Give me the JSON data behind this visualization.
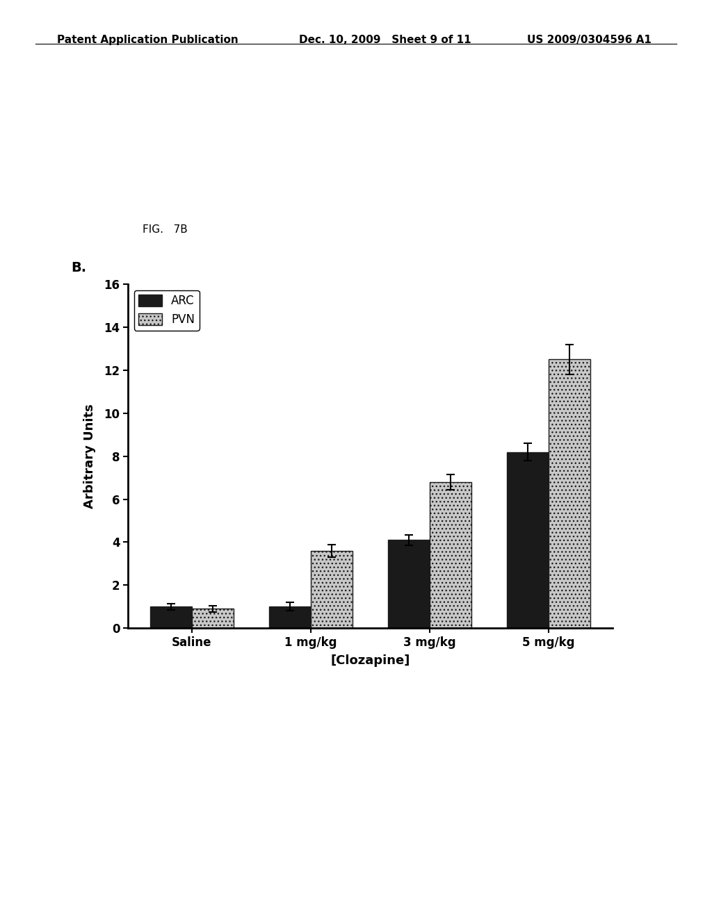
{
  "categories": [
    "Saline",
    "1 mg/kg",
    "3 mg/kg",
    "5 mg/kg"
  ],
  "xlabel": "[Clozapine]",
  "ylabel": "Arbitrary Units",
  "fig_label": "B.",
  "fig_note": "FIG.   7B",
  "header_left": "Patent Application Publication",
  "header_mid": "Dec. 10, 2009   Sheet 9 of 11",
  "header_right": "US 2009/0304596 A1",
  "ylim": [
    0,
    16
  ],
  "yticks": [
    0,
    2,
    4,
    6,
    8,
    10,
    12,
    14,
    16
  ],
  "arc_values": [
    1.0,
    1.0,
    4.1,
    8.2
  ],
  "pvn_values": [
    0.9,
    3.6,
    6.8,
    12.5
  ],
  "arc_errors": [
    0.15,
    0.2,
    0.25,
    0.4
  ],
  "pvn_errors": [
    0.15,
    0.3,
    0.35,
    0.7
  ],
  "arc_color": "#1a1a1a",
  "pvn_hatch": "...",
  "pvn_facecolor": "#c8c8c8",
  "pvn_edgecolor": "#1a1a1a",
  "bar_width": 0.35,
  "legend_labels": [
    "ARC",
    "PVN"
  ],
  "background_color": "#ffffff",
  "header_fontsize": 11,
  "label_fontsize": 13,
  "tick_fontsize": 12,
  "legend_fontsize": 12,
  "fig_note_fontsize": 11,
  "fig_label_fontsize": 14
}
